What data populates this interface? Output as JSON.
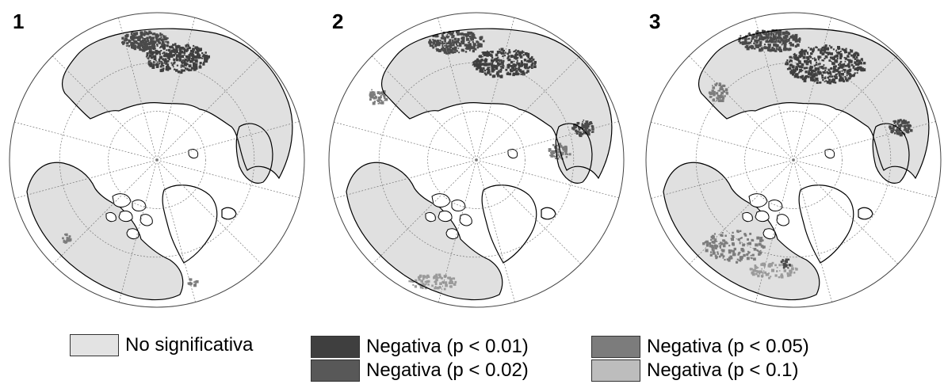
{
  "panels": [
    {
      "label": "1"
    },
    {
      "label": "2"
    },
    {
      "label": "3"
    }
  ],
  "legend": [
    {
      "label": "No significativa",
      "color": "#e3e3e3"
    },
    {
      "label": "Negativa (p < 0.01)",
      "color": "#3f3f3f"
    },
    {
      "label": "Negativa (p < 0.02)",
      "color": "#585858"
    },
    {
      "label": "Negativa (p < 0.05)",
      "color": "#7c7c7c"
    },
    {
      "label": "Negativa (p < 0.1)",
      "color": "#bdbdbd"
    }
  ],
  "colors": {
    "land_no_sig": "#e0e0e0",
    "coast": "#000000",
    "graticule": "#777777"
  }
}
